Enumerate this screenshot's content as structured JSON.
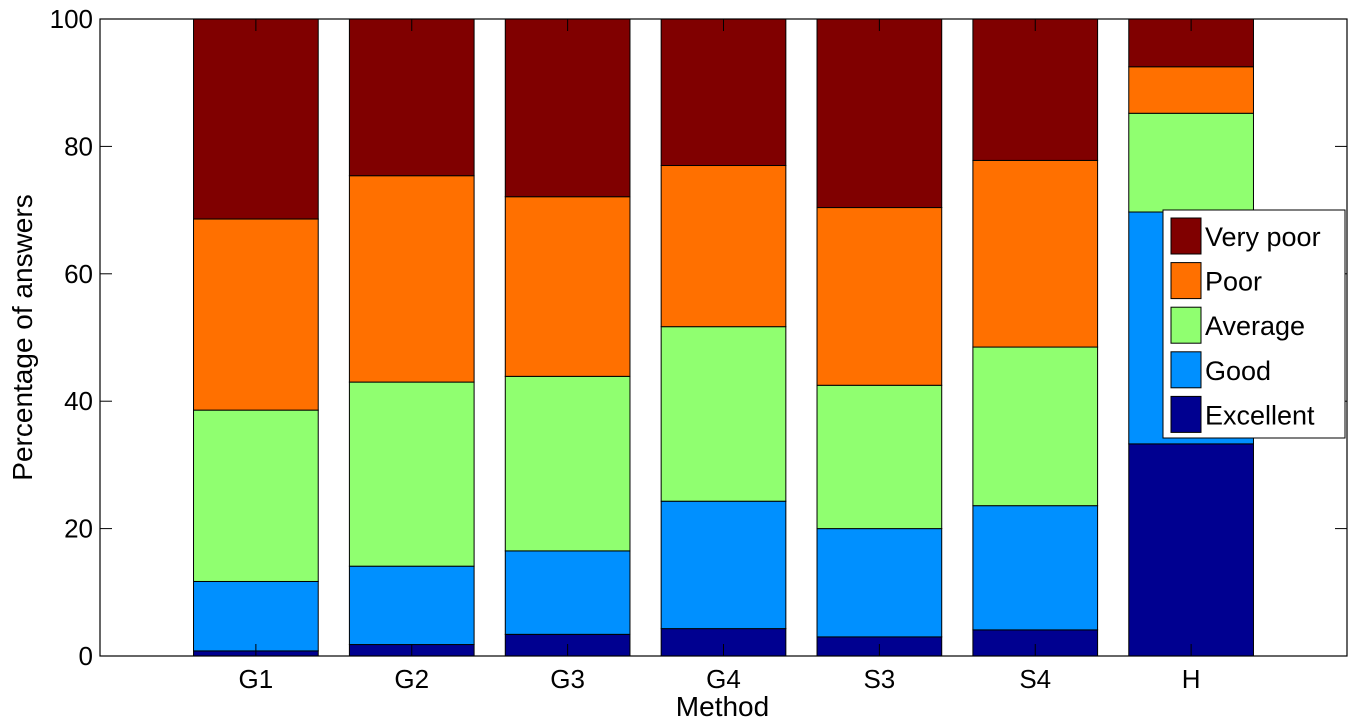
{
  "chart_data": {
    "type": "bar",
    "stacked": true,
    "title": "",
    "xlabel": "Method",
    "ylabel": "Percentage of answers",
    "ylim": [
      0,
      100
    ],
    "yticks": [
      0,
      20,
      40,
      60,
      80,
      100
    ],
    "grid": false,
    "legend_position": "right",
    "categories": [
      "G1",
      "G2",
      "G3",
      "G4",
      "S3",
      "S4",
      "H"
    ],
    "series": [
      {
        "name": "Excellent",
        "color": "#000090",
        "values": [
          0.8,
          1.8,
          3.4,
          4.3,
          3.0,
          4.1,
          33.3
        ]
      },
      {
        "name": "Good",
        "color": "#0090ff",
        "values": [
          10.9,
          12.3,
          13.1,
          20.0,
          17.0,
          19.5,
          36.4
        ]
      },
      {
        "name": "Average",
        "color": "#90ff70",
        "values": [
          26.9,
          28.9,
          27.4,
          27.4,
          22.5,
          24.9,
          15.5
        ]
      },
      {
        "name": "Poor",
        "color": "#ff7000",
        "values": [
          30.0,
          32.4,
          28.2,
          25.3,
          27.9,
          29.3,
          7.3
        ]
      },
      {
        "name": "Very poor",
        "color": "#800000",
        "values": [
          31.4,
          24.6,
          27.9,
          23.0,
          29.6,
          22.2,
          7.5
        ]
      }
    ]
  }
}
